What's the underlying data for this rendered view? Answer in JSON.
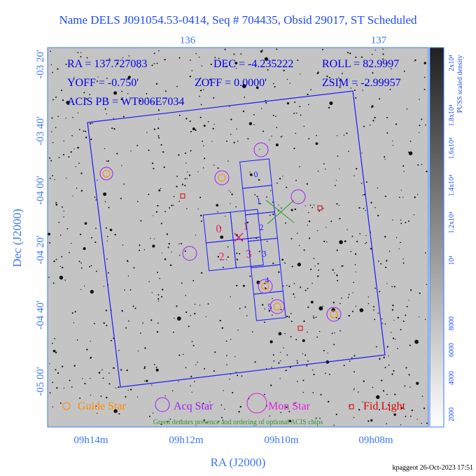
{
  "header": {
    "title": "Name DELS J091054.53-0414, Seq # 704435, Obsid 29017, ST Scheduled"
  },
  "info": [
    "RA = 137.727083",
    "DEC = -4.235222",
    "ROLL = 82.9997",
    "YOFF = -0.750'",
    "ZOFF = 0.0000'",
    "ZSIM = -2.99957",
    "ACIS PB = WT006E7034"
  ],
  "top_axis": {
    "ticks": [
      "136",
      "137"
    ]
  },
  "left_axis": {
    "label": "Dec (J2000)",
    "ticks": [
      "-03 20'",
      "-03 40'",
      "-04 00'",
      "-04 20'",
      "-04 40'",
      "-05 00'"
    ]
  },
  "bottom_axis": {
    "label": "RA (J2000)",
    "ticks": [
      "09h14m",
      "09h12m",
      "09h10m",
      "09h08m"
    ]
  },
  "acis_i_chips": [
    "0",
    "1",
    "2",
    "3"
  ],
  "acis_s_chips": [
    "0",
    "1",
    "2",
    "3",
    "4",
    "5"
  ],
  "colorbar": {
    "label": "PUSS scaled density",
    "ticks": [
      "2000",
      "4000",
      "6000",
      "8000",
      "10⁴",
      "1.2x10⁴",
      "1.4x10⁴",
      "1.6x10⁴",
      "1.8x10⁴",
      "2x10⁴"
    ]
  },
  "legend": [
    "Guide Star",
    "Acq Star",
    "Mon Star",
    "Fid Light"
  ],
  "note": "Green denotes presence and ordering of optional ACIS chips",
  "footer": "kpaggeot 26-Oct-2023 17:51"
}
